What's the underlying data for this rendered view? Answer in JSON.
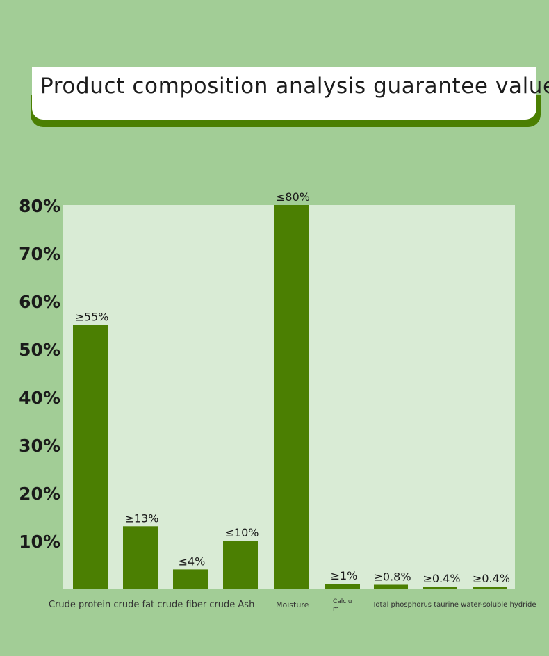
{
  "title": "Product composition analysis guarantee value",
  "colors": {
    "background": "#a2cd96",
    "plot_area": "#d9ebd5",
    "bar": "#4b7f02",
    "banner_accent": "#4b7f02"
  },
  "chart_data": {
    "type": "bar",
    "title": "Product composition analysis guarantee value",
    "xlabel": "",
    "ylabel": "",
    "ylim": [
      0,
      80
    ],
    "y_ticks": [
      "10%",
      "20%",
      "30%",
      "40%",
      "50%",
      "60%",
      "70%",
      "80%"
    ],
    "y_tick_values": [
      10,
      20,
      30,
      40,
      50,
      60,
      70,
      80
    ],
    "grid": false,
    "legend": "none",
    "bars": [
      {
        "value": 55,
        "label": "≥55%"
      },
      {
        "value": 13,
        "label": "≥13%"
      },
      {
        "value": 4,
        "label": "≤4%"
      },
      {
        "value": 10,
        "label": "≤10%"
      },
      {
        "value": 80,
        "label": "≤80%"
      },
      {
        "value": 1,
        "label": "≥1%"
      },
      {
        "value": 0.8,
        "label": "≥0.8%"
      },
      {
        "value": 0.4,
        "label": "≥0.4%"
      },
      {
        "value": 0.4,
        "label": "≥0.4%"
      }
    ],
    "category_labels": [
      "Crude protein crude fat crude fiber crude Ash",
      "Moisture",
      "Calcium",
      "Total phosphorus taurine water-soluble hydride"
    ]
  }
}
